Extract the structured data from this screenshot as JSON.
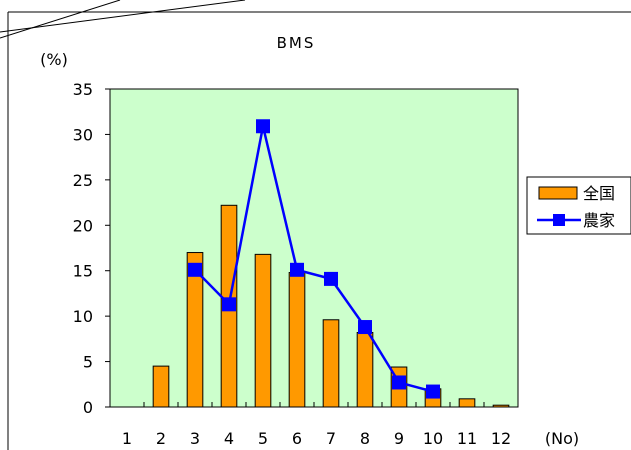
{
  "chart_data": {
    "type": "bar",
    "title": "BMS",
    "ylabel": "(%)",
    "xlabel": "(No)",
    "categories": [
      "1",
      "2",
      "3",
      "4",
      "5",
      "6",
      "7",
      "8",
      "9",
      "10",
      "11",
      "12"
    ],
    "ylim": [
      0,
      35
    ],
    "yticks": [
      0,
      5,
      10,
      15,
      20,
      25,
      30,
      35
    ],
    "grid": false,
    "legend_position": "right",
    "colors": {
      "plot_background": "#ccffcc",
      "bar": "#ff9900",
      "line": "#0000ff"
    },
    "series": [
      {
        "name": "全国",
        "type": "bar",
        "values": [
          0,
          4.5,
          17,
          22.2,
          16.8,
          14.8,
          9.6,
          8.2,
          4.4,
          2.0,
          0.9,
          0.2
        ]
      },
      {
        "name": "農家",
        "type": "line",
        "values": [
          null,
          null,
          15.1,
          11.3,
          30.9,
          15.1,
          14.1,
          8.8,
          2.7,
          1.7,
          null,
          null
        ]
      }
    ]
  }
}
